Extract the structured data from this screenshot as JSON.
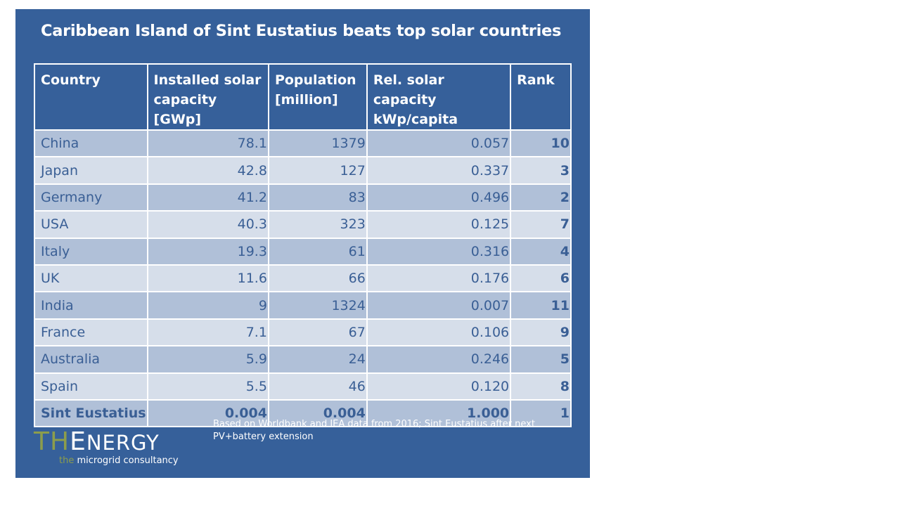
{
  "title": "Caribbean Island of Sint Eustatius beats top solar countries",
  "headers": [
    "Country",
    "Installed solar capacity [GWp]",
    "Population [million]",
    "Rel. solar capacity kWp/capita",
    "Rank"
  ],
  "header_lines": [
    [
      "Country"
    ],
    [
      "Installed solar",
      "capacity [GWp]"
    ],
    [
      "Population",
      "[million]"
    ],
    [
      "Rel. solar capacity",
      "kWp/capita"
    ],
    [
      "Rank"
    ]
  ],
  "rows": [
    [
      "China",
      "78.1",
      "1379",
      "0.057",
      "10"
    ],
    [
      "Japan",
      "42.8",
      "127",
      "0.337",
      "3"
    ],
    [
      "Germany",
      "41.2",
      "83",
      "0.496",
      "2"
    ],
    [
      "USA",
      "40.3",
      "323",
      "0.125",
      "7"
    ],
    [
      "Italy",
      "19.3",
      "61",
      "0.316",
      "4"
    ],
    [
      "UK",
      "11.6",
      "66",
      "0.176",
      "6"
    ],
    [
      "India",
      "9",
      "1324",
      "0.007",
      "11"
    ],
    [
      "France",
      "7.1",
      "67",
      "0.106",
      "9"
    ],
    [
      "Australia",
      "5.9",
      "24",
      "0.246",
      "5"
    ],
    [
      "Spain",
      "5.5",
      "46",
      "0.120",
      "8"
    ],
    [
      "Sint Eustatius",
      "0.004",
      "0.004",
      "1.000",
      "1"
    ]
  ],
  "note": "Based on Worldbank and IEA data from 2016; Sint Eustatius after next PV+battery extension",
  "logo": {
    "main": "THEnergy",
    "tagline": "the microgrid consultancy"
  },
  "colors": {
    "background": "#36609a",
    "row_odd": "#b0c0d8",
    "row_even": "#d6deea",
    "text": "#3a5f95",
    "logo_green": "#8c9d4c"
  }
}
